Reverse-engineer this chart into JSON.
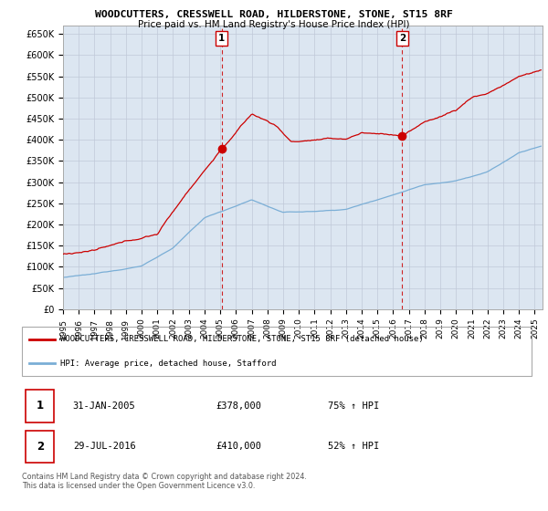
{
  "title": "WOODCUTTERS, CRESSWELL ROAD, HILDERSTONE, STONE, ST15 8RF",
  "subtitle": "Price paid vs. HM Land Registry's House Price Index (HPI)",
  "ylabel_ticks": [
    "£0",
    "£50K",
    "£100K",
    "£150K",
    "£200K",
    "£250K",
    "£300K",
    "£350K",
    "£400K",
    "£450K",
    "£500K",
    "£550K",
    "£600K",
    "£650K"
  ],
  "ytick_vals": [
    0,
    50000,
    100000,
    150000,
    200000,
    250000,
    300000,
    350000,
    400000,
    450000,
    500000,
    550000,
    600000,
    650000
  ],
  "ylim": [
    0,
    670000
  ],
  "xlim_start": 1995.0,
  "xlim_end": 2025.5,
  "marker1_x": 2005.08,
  "marker1_y": 378000,
  "marker1_label": "1",
  "marker2_x": 2016.58,
  "marker2_y": 410000,
  "marker2_label": "2",
  "legend_line1": "WOODCUTTERS, CRESSWELL ROAD, HILDERSTONE, STONE, ST15 8RF (detached house)",
  "legend_line2": "HPI: Average price, detached house, Stafford",
  "table_row1_num": "1",
  "table_row1_date": "31-JAN-2005",
  "table_row1_price": "£378,000",
  "table_row1_hpi": "75% ↑ HPI",
  "table_row2_num": "2",
  "table_row2_date": "29-JUL-2016",
  "table_row2_price": "£410,000",
  "table_row2_hpi": "52% ↑ HPI",
  "footer": "Contains HM Land Registry data © Crown copyright and database right 2024.\nThis data is licensed under the Open Government Licence v3.0.",
  "red_color": "#cc0000",
  "blue_color": "#7aaed6",
  "bg_color": "#dce6f1",
  "plot_bg": "#ffffff",
  "grid_color": "#c0c8d8",
  "box_color": "#aaaaaa"
}
